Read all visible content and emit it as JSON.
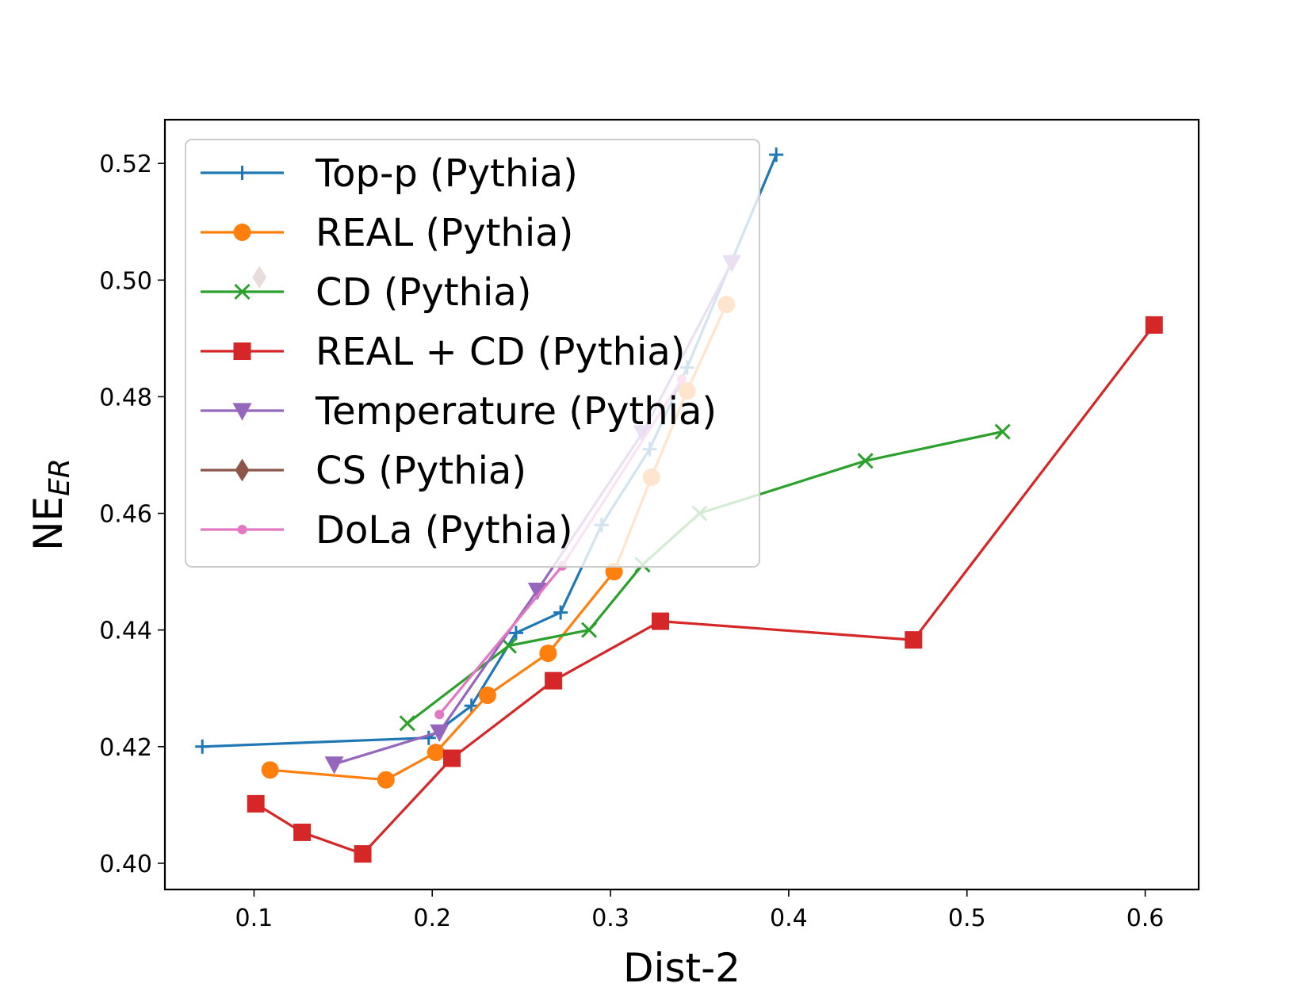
{
  "chart_data": {
    "type": "line",
    "title": "",
    "xlabel": "Dist-2",
    "ylabel": "NE",
    "ylabel_subscript": "ER",
    "xlim": [
      0.05,
      0.63
    ],
    "ylim": [
      0.3955,
      0.5275
    ],
    "x_ticks": [
      0.1,
      0.2,
      0.3,
      0.4,
      0.5,
      0.6
    ],
    "x_tick_labels": [
      "0.1",
      "0.2",
      "0.3",
      "0.4",
      "0.5",
      "0.6"
    ],
    "y_ticks": [
      0.4,
      0.42,
      0.44,
      0.46,
      0.48,
      0.5,
      0.52
    ],
    "y_tick_labels": [
      "0.40",
      "0.42",
      "0.44",
      "0.46",
      "0.48",
      "0.50",
      "0.52"
    ],
    "grid": false,
    "legend_position": "top-left",
    "series": [
      {
        "name": "Top-p (Pythia)",
        "color": "#1f77b4",
        "marker": "plus",
        "x": [
          0.071,
          0.198,
          0.222,
          0.247,
          0.272,
          0.295,
          0.322,
          0.343,
          0.393
        ],
        "y": [
          0.42,
          0.4215,
          0.427,
          0.4395,
          0.443,
          0.458,
          0.471,
          0.485,
          0.5215
        ]
      },
      {
        "name": "REAL (Pythia)",
        "color": "#ff7f0e",
        "marker": "circle",
        "x": [
          0.109,
          0.174,
          0.202,
          0.231,
          0.265,
          0.302,
          0.323,
          0.343,
          0.365
        ],
        "y": [
          0.416,
          0.4143,
          0.419,
          0.4288,
          0.436,
          0.45,
          0.4662,
          0.481,
          0.4958
        ]
      },
      {
        "name": "CD (Pythia)",
        "color": "#2ca02c",
        "marker": "x",
        "x": [
          0.186,
          0.243,
          0.288,
          0.318,
          0.35,
          0.443,
          0.52
        ],
        "y": [
          0.424,
          0.4373,
          0.44,
          0.4512,
          0.46,
          0.469,
          0.474
        ]
      },
      {
        "name": "REAL + CD (Pythia)",
        "color": "#d62728",
        "marker": "square",
        "x": [
          0.101,
          0.127,
          0.161,
          0.211,
          0.268,
          0.328,
          0.47,
          0.605
        ],
        "y": [
          0.4102,
          0.4053,
          0.4016,
          0.418,
          0.4313,
          0.4415,
          0.4383,
          0.4923
        ]
      },
      {
        "name": "Temperature (Pythia)",
        "color": "#9467bd",
        "marker": "triangle-down",
        "x": [
          0.145,
          0.204,
          0.259,
          0.318,
          0.368
        ],
        "y": [
          0.417,
          0.4225,
          0.4468,
          0.4738,
          0.503
        ]
      },
      {
        "name": "CS (Pythia)",
        "color": "#8c564b",
        "marker": "diamond",
        "x": [
          0.103
        ],
        "y": [
          0.5005
        ]
      },
      {
        "name": "DoLa (Pythia)",
        "color": "#e377c2",
        "marker": "dot",
        "x": [
          0.204,
          0.273,
          0.34
        ],
        "y": [
          0.4255,
          0.451,
          0.483
        ]
      }
    ]
  }
}
